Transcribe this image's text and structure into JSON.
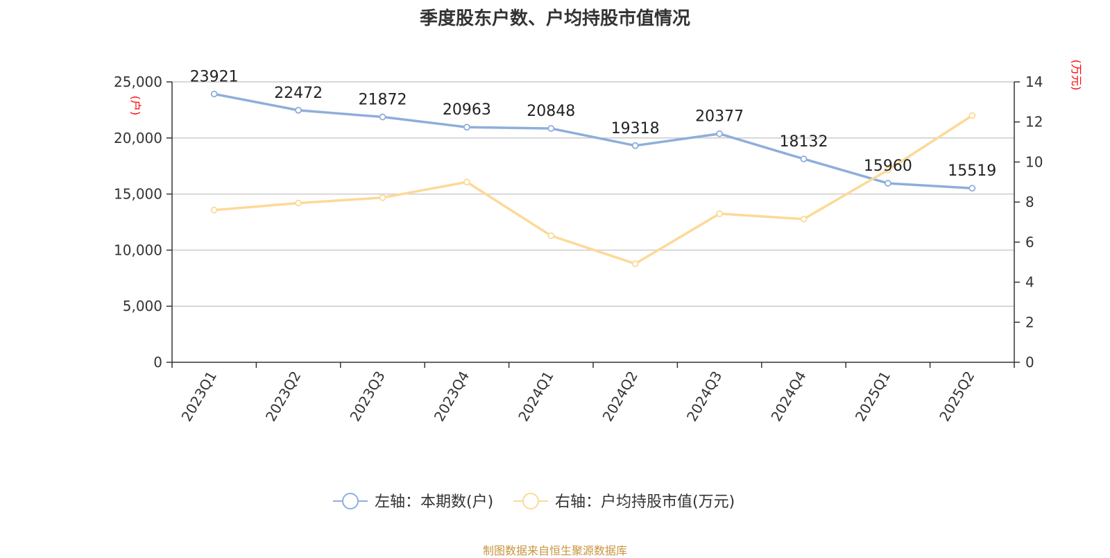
{
  "chart_data": {
    "type": "line",
    "title": "季度股东户数、户均持股市值情况",
    "categories": [
      "2023Q1",
      "2023Q2",
      "2023Q3",
      "2023Q4",
      "2024Q1",
      "2024Q2",
      "2024Q3",
      "2024Q4",
      "2025Q1",
      "2025Q2"
    ],
    "series": [
      {
        "name": "左轴：本期数(户)",
        "axis": "left",
        "color": "#8eaedb",
        "values": [
          23921,
          22472,
          21872,
          20963,
          20848,
          19318,
          20377,
          18132,
          15960,
          15519
        ],
        "data_labels": [
          "23921",
          "22472",
          "21872",
          "20963",
          "20848",
          "19318",
          "20377",
          "18132",
          "15960",
          "15519"
        ]
      },
      {
        "name": "右轴：户均持股市值(万元)",
        "axis": "right",
        "color": "#fcd997",
        "values": [
          7.6,
          7.95,
          8.22,
          9.0,
          6.32,
          4.92,
          7.42,
          7.15,
          9.6,
          12.32
        ]
      }
    ],
    "y_left": {
      "unit": "(户)",
      "ylim": [
        0,
        25000
      ],
      "ticks": [
        0,
        5000,
        10000,
        15000,
        20000,
        25000
      ],
      "tick_labels": [
        "0",
        "5,000",
        "10,000",
        "15,000",
        "20,000",
        "25,000"
      ]
    },
    "y_right": {
      "unit": "(万元)",
      "ylim": [
        0,
        14
      ],
      "ticks": [
        0,
        2,
        4,
        6,
        8,
        10,
        12,
        14
      ],
      "tick_labels": [
        "0",
        "2",
        "4",
        "6",
        "8",
        "10",
        "12",
        "14"
      ]
    },
    "grid": true,
    "legend_position": "bottom-center",
    "source": "制图数据来自恒生聚源数据库"
  }
}
